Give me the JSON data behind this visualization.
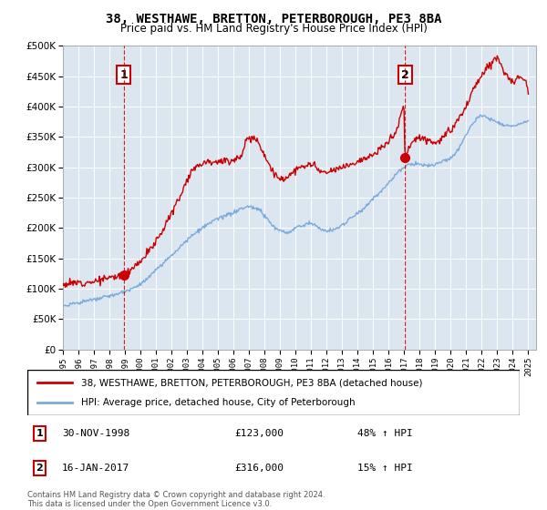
{
  "title": "38, WESTHAWE, BRETTON, PETERBOROUGH, PE3 8BA",
  "subtitle": "Price paid vs. HM Land Registry's House Price Index (HPI)",
  "legend_line1": "38, WESTHAWE, BRETTON, PETERBOROUGH, PE3 8BA (detached house)",
  "legend_line2": "HPI: Average price, detached house, City of Peterborough",
  "annotation1_date": "30-NOV-1998",
  "annotation1_price": "£123,000",
  "annotation1_hpi": "48% ↑ HPI",
  "annotation2_date": "16-JAN-2017",
  "annotation2_price": "£316,000",
  "annotation2_hpi": "15% ↑ HPI",
  "footer1": "Contains HM Land Registry data © Crown copyright and database right 2024.",
  "footer2": "This data is licensed under the Open Government Licence v3.0.",
  "sale1_year": 1998.92,
  "sale1_price": 123000,
  "sale2_year": 2017.05,
  "sale2_price": 316000,
  "red_color": "#cc0000",
  "blue_color": "#7aaadd",
  "plot_bg": "#dce6f1",
  "ylim": [
    0,
    500000
  ],
  "xlim_start": 1995,
  "xlim_end": 2025.5,
  "red_knots": [
    [
      1995.0,
      107000
    ],
    [
      1996.0,
      110000
    ],
    [
      1997.0,
      112000
    ],
    [
      1998.0,
      118000
    ],
    [
      1998.92,
      123000
    ],
    [
      1999.5,
      135000
    ],
    [
      2000.5,
      160000
    ],
    [
      2001.5,
      200000
    ],
    [
      2002.5,
      250000
    ],
    [
      2003.5,
      300000
    ],
    [
      2004.5,
      310000
    ],
    [
      2005.5,
      310000
    ],
    [
      2006.5,
      320000
    ],
    [
      2007.0,
      350000
    ],
    [
      2007.5,
      345000
    ],
    [
      2008.0,
      320000
    ],
    [
      2008.5,
      295000
    ],
    [
      2009.0,
      280000
    ],
    [
      2009.5,
      285000
    ],
    [
      2010.0,
      295000
    ],
    [
      2010.5,
      300000
    ],
    [
      2011.0,
      305000
    ],
    [
      2011.5,
      295000
    ],
    [
      2012.0,
      290000
    ],
    [
      2012.5,
      295000
    ],
    [
      2013.0,
      300000
    ],
    [
      2013.5,
      305000
    ],
    [
      2014.0,
      310000
    ],
    [
      2014.5,
      315000
    ],
    [
      2015.0,
      320000
    ],
    [
      2015.5,
      330000
    ],
    [
      2016.0,
      345000
    ],
    [
      2016.5,
      360000
    ],
    [
      2017.0,
      400000
    ],
    [
      2017.05,
      316000
    ],
    [
      2017.3,
      330000
    ],
    [
      2017.5,
      340000
    ],
    [
      2018.0,
      350000
    ],
    [
      2018.5,
      345000
    ],
    [
      2019.0,
      340000
    ],
    [
      2019.5,
      350000
    ],
    [
      2020.0,
      360000
    ],
    [
      2020.5,
      380000
    ],
    [
      2021.0,
      400000
    ],
    [
      2021.5,
      430000
    ],
    [
      2022.0,
      450000
    ],
    [
      2022.5,
      470000
    ],
    [
      2023.0,
      480000
    ],
    [
      2023.5,
      455000
    ],
    [
      2024.0,
      440000
    ],
    [
      2024.5,
      450000
    ],
    [
      2025.0,
      430000
    ]
  ],
  "blue_knots": [
    [
      1995.0,
      72000
    ],
    [
      1996.0,
      77000
    ],
    [
      1997.0,
      82000
    ],
    [
      1998.0,
      88000
    ],
    [
      1999.0,
      95000
    ],
    [
      2000.0,
      108000
    ],
    [
      2001.0,
      130000
    ],
    [
      2002.0,
      155000
    ],
    [
      2003.0,
      180000
    ],
    [
      2004.0,
      200000
    ],
    [
      2005.0,
      215000
    ],
    [
      2006.0,
      225000
    ],
    [
      2007.0,
      235000
    ],
    [
      2007.5,
      232000
    ],
    [
      2008.0,
      220000
    ],
    [
      2008.5,
      205000
    ],
    [
      2009.0,
      195000
    ],
    [
      2009.5,
      192000
    ],
    [
      2010.0,
      200000
    ],
    [
      2010.5,
      205000
    ],
    [
      2011.0,
      208000
    ],
    [
      2011.5,
      200000
    ],
    [
      2012.0,
      195000
    ],
    [
      2012.5,
      198000
    ],
    [
      2013.0,
      205000
    ],
    [
      2013.5,
      215000
    ],
    [
      2014.0,
      225000
    ],
    [
      2014.5,
      235000
    ],
    [
      2015.0,
      248000
    ],
    [
      2015.5,
      260000
    ],
    [
      2016.0,
      275000
    ],
    [
      2016.5,
      290000
    ],
    [
      2017.0,
      300000
    ],
    [
      2017.5,
      305000
    ],
    [
      2018.0,
      305000
    ],
    [
      2018.5,
      302000
    ],
    [
      2019.0,
      305000
    ],
    [
      2019.5,
      310000
    ],
    [
      2020.0,
      315000
    ],
    [
      2020.5,
      330000
    ],
    [
      2021.0,
      355000
    ],
    [
      2021.5,
      375000
    ],
    [
      2022.0,
      385000
    ],
    [
      2022.5,
      380000
    ],
    [
      2023.0,
      375000
    ],
    [
      2023.5,
      370000
    ],
    [
      2024.0,
      368000
    ],
    [
      2024.5,
      372000
    ],
    [
      2025.0,
      375000
    ]
  ]
}
